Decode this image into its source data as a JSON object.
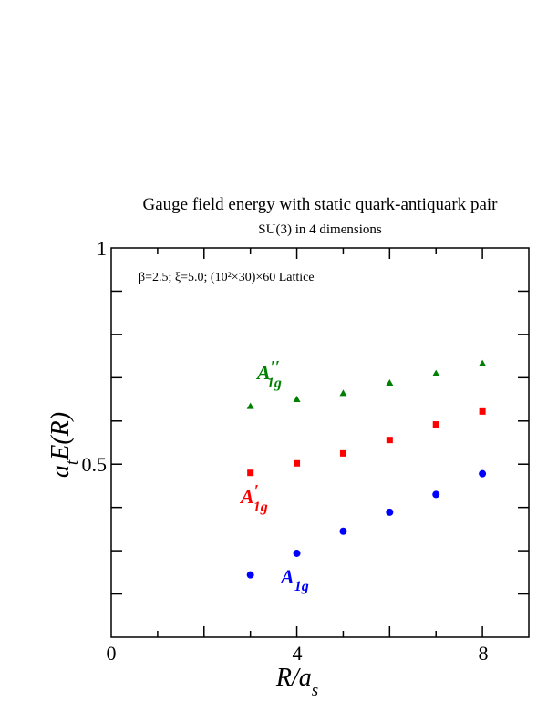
{
  "chart_data": {
    "type": "scatter",
    "title": "Gauge field energy with static quark-antiquark pair",
    "subtitle": "SU(3) in 4 dimensions",
    "annotation": "β=2.5;  ξ=5.0;  (10²×30)×60 Lattice",
    "xlabel": {
      "main": "R/a",
      "sub": "s"
    },
    "ylabel": {
      "main1": "a",
      "sub": "t",
      "main2": "E(R)"
    },
    "xlim": [
      0,
      9
    ],
    "ylim": [
      0.1,
      1.0
    ],
    "x_ticks": [
      0,
      4,
      8
    ],
    "y_ticks": [
      0.5,
      1
    ],
    "y_tick_labels": [
      "0.5",
      "1"
    ],
    "grid": false,
    "series": [
      {
        "name": "A1g",
        "label": {
          "main": "A",
          "sub": "1g",
          "prime": ""
        },
        "color": "#0000ff",
        "marker": "circle",
        "x": [
          3,
          4,
          5,
          6,
          7,
          8
        ],
        "y": [
          0.244,
          0.294,
          0.345,
          0.389,
          0.43,
          0.478
        ]
      },
      {
        "name": "A1g'",
        "label": {
          "main": "A",
          "sub": "1g",
          "prime": "′"
        },
        "color": "#ff0000",
        "marker": "square",
        "x": [
          3,
          4,
          5,
          6,
          7,
          8
        ],
        "y": [
          0.48,
          0.502,
          0.525,
          0.556,
          0.592,
          0.622
        ]
      },
      {
        "name": "A1g''",
        "label": {
          "main": "A",
          "sub": "1g",
          "prime": "′′"
        },
        "color": "#008000",
        "marker": "triangle",
        "x": [
          3,
          4,
          5,
          6,
          7,
          8
        ],
        "y": [
          0.634,
          0.65,
          0.664,
          0.688,
          0.71,
          0.733
        ]
      }
    ]
  }
}
